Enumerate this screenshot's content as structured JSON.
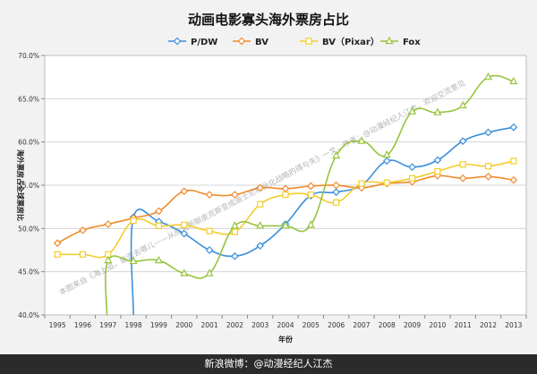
{
  "chart_data": {
    "type": "line",
    "title": "动画电影寡头海外票房占比",
    "xlabel": "年份",
    "ylabel": "海外票房占全球票房比",
    "categories": [
      "1995",
      "1996",
      "1997",
      "1998",
      "1999",
      "2000",
      "2001",
      "2002",
      "2003",
      "2004",
      "2005",
      "2006",
      "2007",
      "2008",
      "2009",
      "2010",
      "2011",
      "2012",
      "2013"
    ],
    "yticks": [
      "40.0%",
      "45.0%",
      "50.0%",
      "55.0%",
      "60.0%",
      "65.0%",
      "70.0%"
    ],
    "ylim": [
      40,
      70
    ],
    "grid": true,
    "legend_position": "top",
    "series": [
      {
        "name": "P/DW",
        "color": "#3a8fd9",
        "marker": "diamond",
        "values": [
          null,
          null,
          null,
          51.3,
          50.8,
          49.4,
          47.5,
          46.8,
          48.0,
          50.5,
          53.8,
          54.2,
          55.0,
          57.8,
          57.1,
          57.9,
          60.1,
          61.1,
          61.7
        ],
        "start": [
          1998,
          40.0
        ]
      },
      {
        "name": "BV",
        "color": "#f08a2a",
        "marker": "diamond",
        "values": [
          48.3,
          49.8,
          50.5,
          51.2,
          52.0,
          54.3,
          53.9,
          53.9,
          54.7,
          54.6,
          54.9,
          55.0,
          54.7,
          55.2,
          55.4,
          56.1,
          55.8,
          56.0,
          55.6
        ]
      },
      {
        "name": "BV（Pixar）",
        "color": "#f2cd2e",
        "marker": "square",
        "values": [
          47.0,
          47.0,
          47.0,
          50.9,
          50.3,
          50.4,
          49.7,
          49.6,
          52.8,
          53.9,
          53.9,
          53.0,
          55.2,
          55.3,
          55.8,
          56.6,
          57.4,
          57.2,
          57.8
        ]
      },
      {
        "name": "Fox",
        "color": "#96c43d",
        "marker": "triangle",
        "values": [
          null,
          null,
          46.3,
          46.2,
          46.3,
          44.8,
          44.8,
          50.3,
          50.3,
          50.3,
          50.4,
          58.4,
          60.1,
          58.5,
          63.5,
          63.4,
          64.2,
          67.5,
          67.0
        ],
        "start": [
          1996.95,
          40.0
        ]
      }
    ]
  },
  "watermark": "本图来自《海上追，能否去哪儿——从皮克斯聊皮克斯变成迪士尼商业化战略的得与失》一文，作者：@动漫经纪人江杰，欢迎交流意见",
  "footer": {
    "text": "新浪微博：@动漫经纪人江杰",
    "background": "#2b2b2b"
  },
  "colors": {
    "plot_bg": "#ffffff",
    "grid": "#d4d4d4"
  }
}
